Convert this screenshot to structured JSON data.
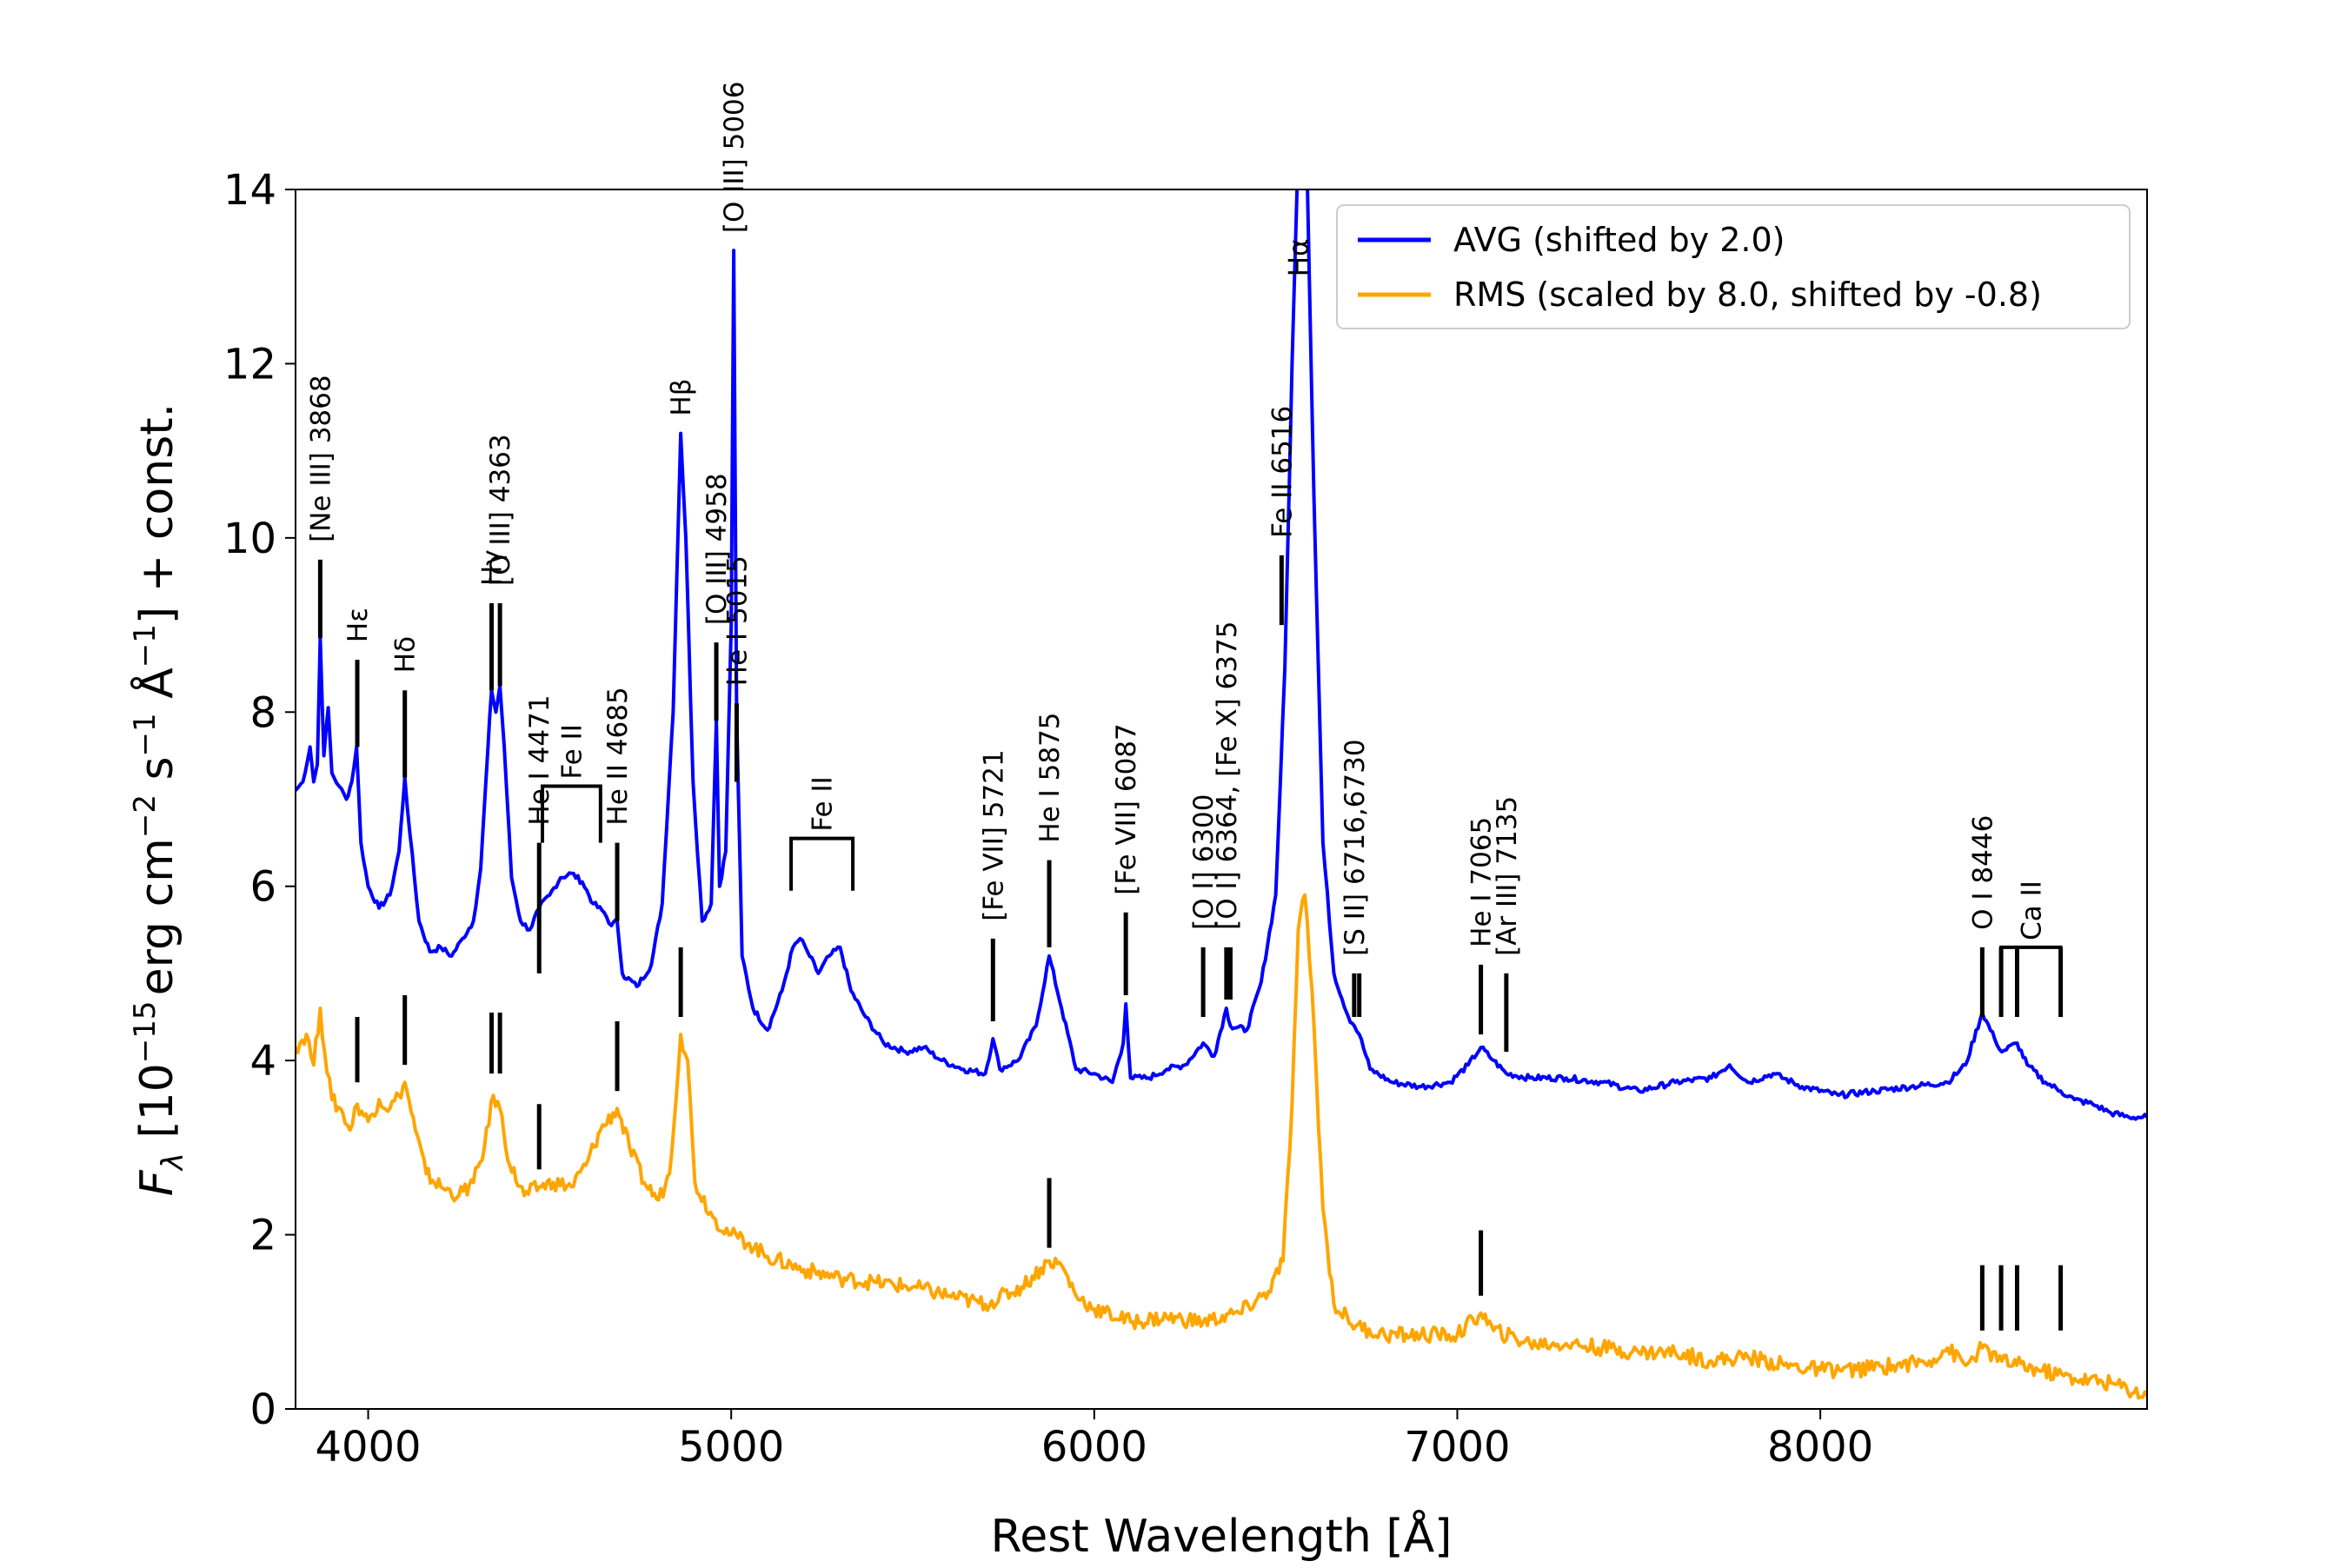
{
  "chart_data": {
    "type": "line",
    "xlabel": "Rest Wavelength [Å]",
    "ylabel_parts": {
      "f": "F",
      "lambda_sub": "λ",
      "bracket_open": " [10",
      "exp1": "−15",
      "unit1": "erg cm",
      "exp2": "−2",
      "unit2": " s",
      "exp3": "−1",
      "unit3": " Å",
      "exp4": "−1",
      "tail": "] + const."
    },
    "xlim": [
      3800,
      8900
    ],
    "ylim": [
      0,
      14
    ],
    "xticks": [
      4000,
      5000,
      6000,
      7000,
      8000
    ],
    "yticks": [
      0,
      2,
      4,
      6,
      8,
      10,
      12,
      14
    ],
    "legend_position": "top-right",
    "series": [
      {
        "name": "AVG (shifted by 2.0)",
        "color": "#0000ff",
        "points": [
          [
            3800,
            7.1
          ],
          [
            3820,
            7.2
          ],
          [
            3840,
            7.6
          ],
          [
            3850,
            7.2
          ],
          [
            3860,
            7.4
          ],
          [
            3868,
            8.85
          ],
          [
            3878,
            7.5
          ],
          [
            3890,
            8.05
          ],
          [
            3900,
            7.3
          ],
          [
            3920,
            7.15
          ],
          [
            3940,
            7.0
          ],
          [
            3955,
            7.2
          ],
          [
            3968,
            7.6
          ],
          [
            3980,
            6.5
          ],
          [
            4000,
            6.0
          ],
          [
            4030,
            5.75
          ],
          [
            4060,
            5.9
          ],
          [
            4085,
            6.4
          ],
          [
            4101,
            7.25
          ],
          [
            4115,
            6.6
          ],
          [
            4140,
            5.6
          ],
          [
            4170,
            5.25
          ],
          [
            4200,
            5.3
          ],
          [
            4230,
            5.2
          ],
          [
            4260,
            5.4
          ],
          [
            4290,
            5.6
          ],
          [
            4310,
            6.2
          ],
          [
            4330,
            7.6
          ],
          [
            4340,
            8.25
          ],
          [
            4352,
            8.0
          ],
          [
            4363,
            8.3
          ],
          [
            4375,
            7.6
          ],
          [
            4395,
            6.1
          ],
          [
            4420,
            5.6
          ],
          [
            4445,
            5.5
          ],
          [
            4471,
            5.75
          ],
          [
            4500,
            5.9
          ],
          [
            4530,
            6.1
          ],
          [
            4560,
            6.15
          ],
          [
            4590,
            6.05
          ],
          [
            4620,
            5.8
          ],
          [
            4650,
            5.7
          ],
          [
            4670,
            5.55
          ],
          [
            4686,
            5.6
          ],
          [
            4700,
            5.0
          ],
          [
            4740,
            4.85
          ],
          [
            4780,
            5.1
          ],
          [
            4810,
            5.8
          ],
          [
            4840,
            8.0
          ],
          [
            4861,
            11.2
          ],
          [
            4875,
            10.0
          ],
          [
            4895,
            7.2
          ],
          [
            4920,
            5.6
          ],
          [
            4945,
            5.8
          ],
          [
            4959,
            7.9
          ],
          [
            4968,
            6.0
          ],
          [
            4985,
            6.4
          ],
          [
            5000,
            9.0
          ],
          [
            5007,
            13.3
          ],
          [
            5015,
            8.0
          ],
          [
            5030,
            5.2
          ],
          [
            5060,
            4.6
          ],
          [
            5100,
            4.35
          ],
          [
            5140,
            4.8
          ],
          [
            5170,
            5.3
          ],
          [
            5190,
            5.4
          ],
          [
            5210,
            5.25
          ],
          [
            5240,
            5.0
          ],
          [
            5270,
            5.2
          ],
          [
            5300,
            5.3
          ],
          [
            5330,
            4.8
          ],
          [
            5370,
            4.5
          ],
          [
            5420,
            4.2
          ],
          [
            5480,
            4.1
          ],
          [
            5530,
            4.15
          ],
          [
            5580,
            4.0
          ],
          [
            5640,
            3.9
          ],
          [
            5700,
            3.85
          ],
          [
            5721,
            4.25
          ],
          [
            5740,
            3.9
          ],
          [
            5790,
            4.0
          ],
          [
            5840,
            4.4
          ],
          [
            5876,
            5.2
          ],
          [
            5910,
            4.6
          ],
          [
            5950,
            3.9
          ],
          [
            6000,
            3.85
          ],
          [
            6050,
            3.75
          ],
          [
            6080,
            4.2
          ],
          [
            6087,
            4.65
          ],
          [
            6100,
            3.8
          ],
          [
            6150,
            3.8
          ],
          [
            6200,
            3.9
          ],
          [
            6250,
            3.95
          ],
          [
            6300,
            4.2
          ],
          [
            6330,
            4.05
          ],
          [
            6364,
            4.6
          ],
          [
            6375,
            4.4
          ],
          [
            6420,
            4.35
          ],
          [
            6460,
            4.9
          ],
          [
            6500,
            5.9
          ],
          [
            6525,
            8.5
          ],
          [
            6545,
            12.0
          ],
          [
            6562,
            14.5
          ],
          [
            6585,
            14.5
          ],
          [
            6605,
            10.5
          ],
          [
            6630,
            6.5
          ],
          [
            6660,
            5.0
          ],
          [
            6700,
            4.5
          ],
          [
            6716,
            4.4
          ],
          [
            6730,
            4.3
          ],
          [
            6760,
            3.9
          ],
          [
            6820,
            3.75
          ],
          [
            6900,
            3.7
          ],
          [
            6980,
            3.75
          ],
          [
            7030,
            3.95
          ],
          [
            7065,
            4.15
          ],
          [
            7100,
            4.0
          ],
          [
            7135,
            3.85
          ],
          [
            7200,
            3.8
          ],
          [
            7300,
            3.8
          ],
          [
            7400,
            3.75
          ],
          [
            7500,
            3.65
          ],
          [
            7600,
            3.75
          ],
          [
            7700,
            3.8
          ],
          [
            7750,
            3.95
          ],
          [
            7800,
            3.75
          ],
          [
            7870,
            3.85
          ],
          [
            7950,
            3.7
          ],
          [
            8050,
            3.6
          ],
          [
            8150,
            3.65
          ],
          [
            8250,
            3.7
          ],
          [
            8350,
            3.75
          ],
          [
            8400,
            3.95
          ],
          [
            8446,
            4.55
          ],
          [
            8480,
            4.25
          ],
          [
            8500,
            4.1
          ],
          [
            8542,
            4.2
          ],
          [
            8570,
            3.95
          ],
          [
            8620,
            3.75
          ],
          [
            8662,
            3.65
          ],
          [
            8700,
            3.55
          ],
          [
            8750,
            3.5
          ],
          [
            8800,
            3.4
          ],
          [
            8850,
            3.35
          ],
          [
            8900,
            3.35
          ]
        ]
      },
      {
        "name": "RMS (scaled by 8.0, shifted by -0.8)",
        "color": "#ffa500",
        "points": [
          [
            3800,
            4.15
          ],
          [
            3830,
            4.3
          ],
          [
            3850,
            3.95
          ],
          [
            3868,
            4.6
          ],
          [
            3880,
            4.1
          ],
          [
            3900,
            3.55
          ],
          [
            3930,
            3.4
          ],
          [
            3950,
            3.2
          ],
          [
            3970,
            3.5
          ],
          [
            4000,
            3.3
          ],
          [
            4030,
            3.55
          ],
          [
            4060,
            3.45
          ],
          [
            4085,
            3.6
          ],
          [
            4101,
            3.75
          ],
          [
            4130,
            3.2
          ],
          [
            4160,
            2.7
          ],
          [
            4200,
            2.55
          ],
          [
            4250,
            2.45
          ],
          [
            4290,
            2.6
          ],
          [
            4320,
            3.0
          ],
          [
            4345,
            3.6
          ],
          [
            4363,
            3.45
          ],
          [
            4390,
            2.8
          ],
          [
            4430,
            2.45
          ],
          [
            4471,
            2.55
          ],
          [
            4510,
            2.6
          ],
          [
            4560,
            2.55
          ],
          [
            4600,
            2.8
          ],
          [
            4640,
            3.2
          ],
          [
            4686,
            3.45
          ],
          [
            4720,
            3.0
          ],
          [
            4760,
            2.6
          ],
          [
            4800,
            2.4
          ],
          [
            4830,
            2.7
          ],
          [
            4861,
            4.3
          ],
          [
            4880,
            4.0
          ],
          [
            4900,
            2.6
          ],
          [
            4950,
            2.2
          ],
          [
            5000,
            2.0
          ],
          [
            5050,
            1.9
          ],
          [
            5100,
            1.75
          ],
          [
            5200,
            1.6
          ],
          [
            5300,
            1.5
          ],
          [
            5400,
            1.45
          ],
          [
            5500,
            1.4
          ],
          [
            5600,
            1.3
          ],
          [
            5700,
            1.2
          ],
          [
            5800,
            1.4
          ],
          [
            5876,
            1.7
          ],
          [
            5910,
            1.65
          ],
          [
            5950,
            1.3
          ],
          [
            6000,
            1.15
          ],
          [
            6100,
            1.0
          ],
          [
            6200,
            1.05
          ],
          [
            6300,
            1.0
          ],
          [
            6400,
            1.1
          ],
          [
            6480,
            1.35
          ],
          [
            6520,
            1.7
          ],
          [
            6545,
            3.5
          ],
          [
            6562,
            5.5
          ],
          [
            6580,
            5.9
          ],
          [
            6600,
            4.8
          ],
          [
            6630,
            2.3
          ],
          [
            6660,
            1.2
          ],
          [
            6720,
            0.95
          ],
          [
            6800,
            0.85
          ],
          [
            6900,
            0.85
          ],
          [
            7000,
            0.85
          ],
          [
            7065,
            1.1
          ],
          [
            7100,
            0.9
          ],
          [
            7200,
            0.75
          ],
          [
            7300,
            0.75
          ],
          [
            7400,
            0.7
          ],
          [
            7500,
            0.65
          ],
          [
            7600,
            0.65
          ],
          [
            7700,
            0.55
          ],
          [
            7800,
            0.6
          ],
          [
            7900,
            0.5
          ],
          [
            8000,
            0.45
          ],
          [
            8100,
            0.45
          ],
          [
            8200,
            0.5
          ],
          [
            8300,
            0.55
          ],
          [
            8350,
            0.7
          ],
          [
            8400,
            0.5
          ],
          [
            8446,
            0.7
          ],
          [
            8500,
            0.55
          ],
          [
            8600,
            0.45
          ],
          [
            8700,
            0.35
          ],
          [
            8800,
            0.3
          ],
          [
            8900,
            0.15
          ]
        ]
      }
    ],
    "line_markers": [
      {
        "x": 3868,
        "y0": 8.85,
        "y1": 9.75,
        "label": "[Ne III] 3868",
        "label_y": 9.95
      },
      {
        "x": 3970,
        "y0": 7.6,
        "y1": 8.6,
        "label": "Hε",
        "label_y": 8.8
      },
      {
        "x": 4101,
        "y0": 7.25,
        "y1": 8.25,
        "label": "Hδ",
        "label_y": 8.45
      },
      {
        "x": 4340,
        "y0": 8.25,
        "y1": 9.25,
        "label": "Hγ",
        "label_y": 9.45
      },
      {
        "x": 4363,
        "y0": 8.3,
        "y1": 9.25,
        "label": "[O III] 4363",
        "label_y": 9.45
      },
      {
        "x": 4471,
        "y0": 5.0,
        "y1": 6.5,
        "label": "He I 4471",
        "label_y": 6.7
      },
      {
        "x": 4686,
        "y0": 5.6,
        "y1": 6.5,
        "label": "He II 4685",
        "label_y": 6.7
      },
      {
        "x": 4861,
        "y0": 11.2,
        "y1": 11.2,
        "label": "Hβ",
        "label_y": 11.4
      },
      {
        "x": 4959,
        "y0": 7.9,
        "y1": 8.8,
        "label": "[O III] 4958",
        "label_y": 9.0
      },
      {
        "x": 5007,
        "y0": 13.3,
        "y1": 13.3,
        "label": "[O III] 5006",
        "label_y": 13.5
      },
      {
        "x": 5015,
        "y0": 7.2,
        "y1": 8.1,
        "label": "He I 5015",
        "label_y": 8.3
      },
      {
        "x": 5721,
        "y0": 4.45,
        "y1": 5.4,
        "label": "[Fe VII] 5721",
        "label_y": 5.6
      },
      {
        "x": 5876,
        "y0": 5.3,
        "y1": 6.3,
        "label": "He I 5875",
        "label_y": 6.5
      },
      {
        "x": 6087,
        "y0": 4.75,
        "y1": 5.7,
        "label": "[Fe VII] 6087",
        "label_y": 5.9
      },
      {
        "x": 6300,
        "y0": 4.5,
        "y1": 5.3,
        "label": "[O I] 6300",
        "label_y": 5.5
      },
      {
        "x": 6364,
        "y0": 4.7,
        "y1": 5.3,
        "label": "[O I] 6364, [Fe X] 6375",
        "label_y": 5.5
      },
      {
        "x": 6375,
        "y0": 4.7,
        "y1": 5.3,
        "label": "",
        "label_y": 5.5
      },
      {
        "x": 6516,
        "y0": 9.0,
        "y1": 9.8,
        "label": "Fe II 6516",
        "label_y": 10.0
      },
      {
        "x": 6562,
        "y0": 13.0,
        "y1": 13.0,
        "label": "Hα",
        "label_y": 13.0
      },
      {
        "x": 6716,
        "y0": 4.5,
        "y1": 5.0,
        "label": "[S II] 6716,6730",
        "label_y": 5.2
      },
      {
        "x": 6730,
        "y0": 4.5,
        "y1": 5.0,
        "label": "",
        "label_y": 5.2
      },
      {
        "x": 7065,
        "y0": 4.3,
        "y1": 5.1,
        "label": "He I 7065",
        "label_y": 5.3
      },
      {
        "x": 7135,
        "y0": 4.1,
        "y1": 5.0,
        "label": "[Ar III] 7135",
        "label_y": 5.2
      },
      {
        "x": 8446,
        "y0": 4.5,
        "y1": 5.3,
        "label": "O I 8446",
        "label_y": 5.5
      },
      {
        "x": 8498,
        "y0": 4.5,
        "y1": 5.3,
        "label": "",
        "label_y": 5.5
      },
      {
        "x": 8542,
        "y0": 4.5,
        "y1": 5.3,
        "label": "",
        "label_y": 5.5
      },
      {
        "x": 8662,
        "y0": 4.5,
        "y1": 5.3,
        "label": "",
        "label_y": 5.5
      }
    ],
    "brackets": [
      {
        "x_start": 4480,
        "x_end": 4640,
        "y": 7.15,
        "y_drop": 6.5,
        "label": "Fe II"
      },
      {
        "x_start": 5165,
        "x_end": 5335,
        "y": 6.55,
        "y_drop": 5.95,
        "label": "Fe II"
      },
      {
        "x_start": 8498,
        "x_end": 8662,
        "y": 5.3,
        "y_drop": 4.5,
        "label": "Ca II"
      }
    ],
    "rms_markers": [
      {
        "x": 3970,
        "y0": 3.75,
        "y1": 4.5
      },
      {
        "x": 4101,
        "y0": 3.95,
        "y1": 4.75
      },
      {
        "x": 4340,
        "y0": 3.85,
        "y1": 4.55
      },
      {
        "x": 4363,
        "y0": 3.85,
        "y1": 4.55
      },
      {
        "x": 4471,
        "y0": 2.75,
        "y1": 3.5
      },
      {
        "x": 4686,
        "y0": 3.65,
        "y1": 4.45
      },
      {
        "x": 4861,
        "y0": 4.5,
        "y1": 5.3
      },
      {
        "x": 5876,
        "y0": 1.85,
        "y1": 2.65
      },
      {
        "x": 7065,
        "y0": 1.3,
        "y1": 2.05
      },
      {
        "x": 8446,
        "y0": 0.9,
        "y1": 1.65
      },
      {
        "x": 8498,
        "y0": 0.9,
        "y1": 1.65
      },
      {
        "x": 8542,
        "y0": 0.9,
        "y1": 1.65
      },
      {
        "x": 8662,
        "y0": 0.9,
        "y1": 1.65
      }
    ]
  }
}
